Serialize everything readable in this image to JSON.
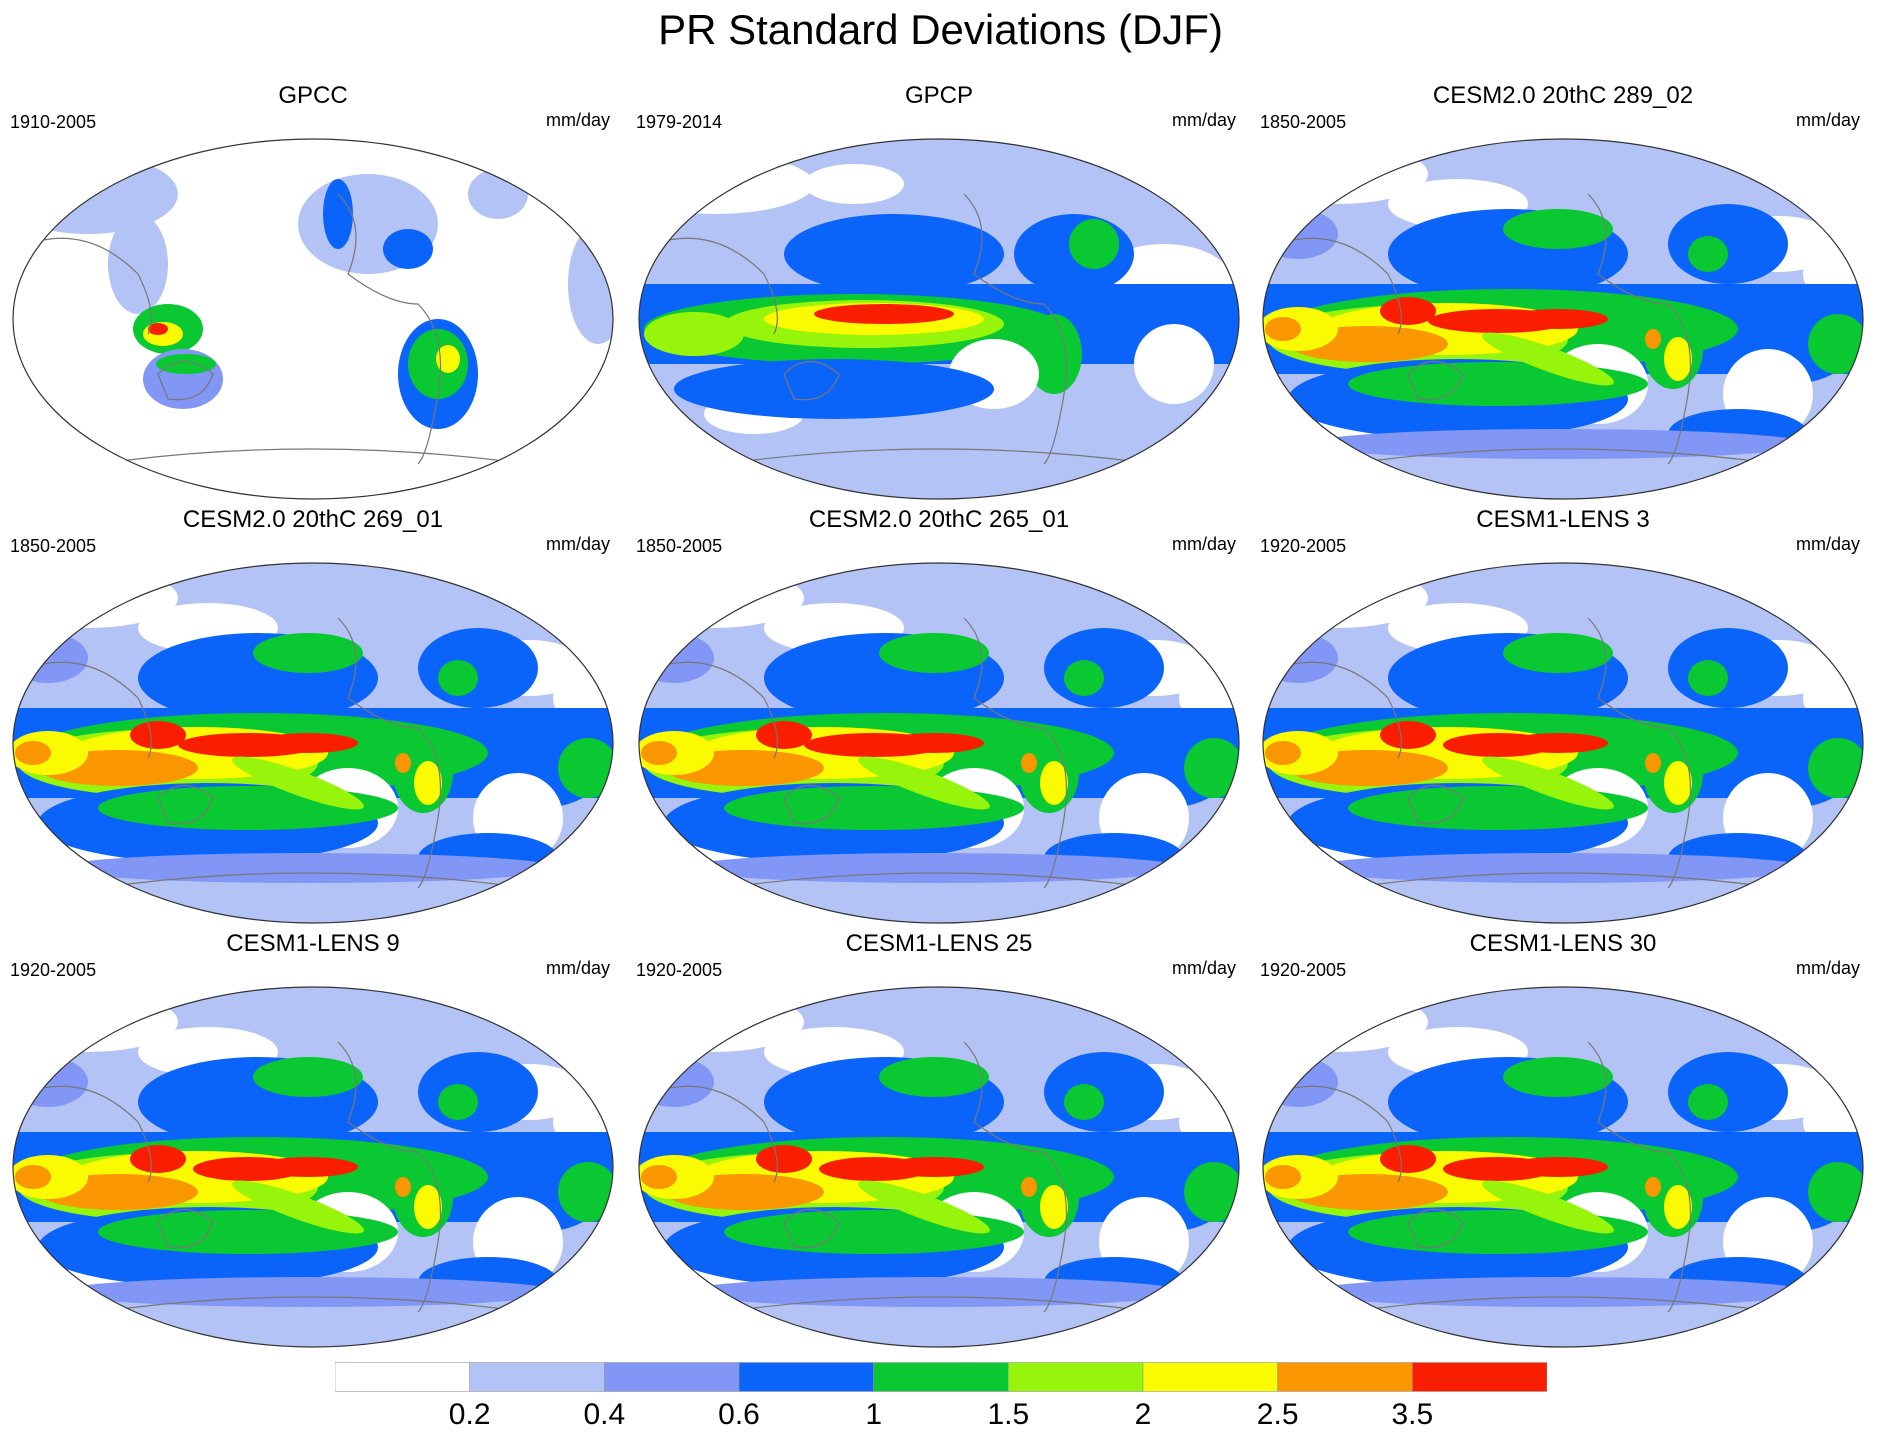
{
  "title": "PR Standard Deviations (DJF)",
  "units": "mm/day",
  "panels": [
    {
      "title": "GPCC",
      "period": "1910-2005",
      "source": "obs-land"
    },
    {
      "title": "GPCP",
      "period": "1979-2014",
      "source": "obs"
    },
    {
      "title": "CESM2.0 20thC 289_02",
      "period": "1850-2005",
      "source": "cesm2"
    },
    {
      "title": "CESM2.0 20thC 269_01",
      "period": "1850-2005",
      "source": "cesm2"
    },
    {
      "title": "CESM2.0 20thC 265_01",
      "period": "1850-2005",
      "source": "cesm2"
    },
    {
      "title": "CESM1-LENS 3",
      "period": "1920-2005",
      "source": "cesm1"
    },
    {
      "title": "CESM1-LENS 9",
      "period": "1920-2005",
      "source": "cesm1"
    },
    {
      "title": "CESM1-LENS 25",
      "period": "1920-2005",
      "source": "cesm1"
    },
    {
      "title": "CESM1-LENS 30",
      "period": "1920-2005",
      "source": "cesm1"
    }
  ],
  "colorbar": {
    "levels": [
      "0.2",
      "0.4",
      "0.6",
      "1",
      "1.5",
      "2",
      "2.5",
      "3.5"
    ],
    "colors": [
      "#ffffff",
      "#b4c3f5",
      "#8296f5",
      "#0a64fa",
      "#0ac832",
      "#96f50a",
      "#fafa00",
      "#fa9600",
      "#fa1e00"
    ]
  }
}
